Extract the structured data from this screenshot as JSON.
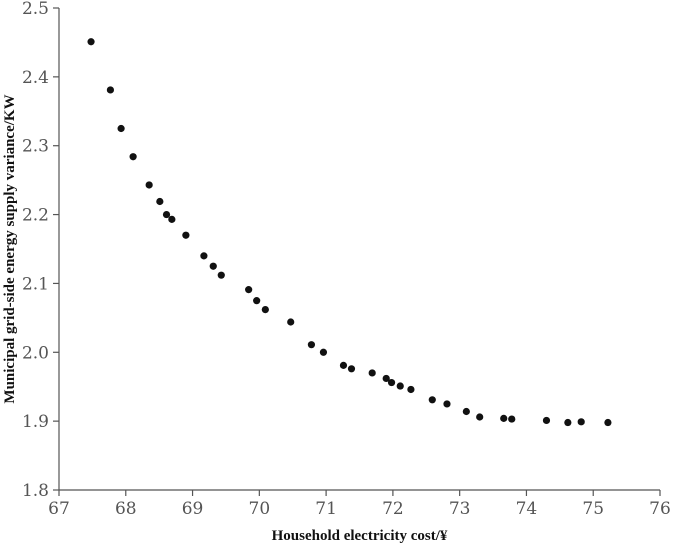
{
  "chart_data": {
    "type": "scatter",
    "title": "",
    "xlabel": "Household electricity cost/¥",
    "ylabel": "Municipal grid-side energy supply variance/KW",
    "xlim": [
      67,
      76
    ],
    "ylim": [
      1.8,
      2.5
    ],
    "xticks": [
      "67",
      "68",
      "69",
      "70",
      "71",
      "72",
      "73",
      "74",
      "75",
      "76"
    ],
    "yticks": [
      "1.8",
      "1.9",
      "2.0",
      "2.1",
      "2.2",
      "2.3",
      "2.4",
      "2.5"
    ],
    "grid": false,
    "legend": "none",
    "marker_color": "#111111",
    "points": [
      {
        "x": 67.48,
        "y": 2.451
      },
      {
        "x": 67.77,
        "y": 2.381
      },
      {
        "x": 67.93,
        "y": 2.325
      },
      {
        "x": 68.11,
        "y": 2.284
      },
      {
        "x": 68.35,
        "y": 2.243
      },
      {
        "x": 68.51,
        "y": 2.219
      },
      {
        "x": 68.61,
        "y": 2.2
      },
      {
        "x": 68.69,
        "y": 2.193
      },
      {
        "x": 68.9,
        "y": 2.17
      },
      {
        "x": 69.17,
        "y": 2.14
      },
      {
        "x": 69.31,
        "y": 2.125
      },
      {
        "x": 69.43,
        "y": 2.112
      },
      {
        "x": 69.84,
        "y": 2.091
      },
      {
        "x": 69.96,
        "y": 2.075
      },
      {
        "x": 70.09,
        "y": 2.062
      },
      {
        "x": 70.47,
        "y": 2.044
      },
      {
        "x": 70.78,
        "y": 2.011
      },
      {
        "x": 70.96,
        "y": 2.0
      },
      {
        "x": 71.26,
        "y": 1.981
      },
      {
        "x": 71.38,
        "y": 1.976
      },
      {
        "x": 71.69,
        "y": 1.97
      },
      {
        "x": 71.9,
        "y": 1.962
      },
      {
        "x": 71.98,
        "y": 1.956
      },
      {
        "x": 72.11,
        "y": 1.951
      },
      {
        "x": 72.27,
        "y": 1.946
      },
      {
        "x": 72.59,
        "y": 1.931
      },
      {
        "x": 72.81,
        "y": 1.925
      },
      {
        "x": 73.1,
        "y": 1.914
      },
      {
        "x": 73.3,
        "y": 1.906
      },
      {
        "x": 73.66,
        "y": 1.904
      },
      {
        "x": 73.78,
        "y": 1.903
      },
      {
        "x": 74.3,
        "y": 1.901
      },
      {
        "x": 74.62,
        "y": 1.898
      },
      {
        "x": 74.82,
        "y": 1.899
      },
      {
        "x": 75.22,
        "y": 1.898
      }
    ]
  }
}
